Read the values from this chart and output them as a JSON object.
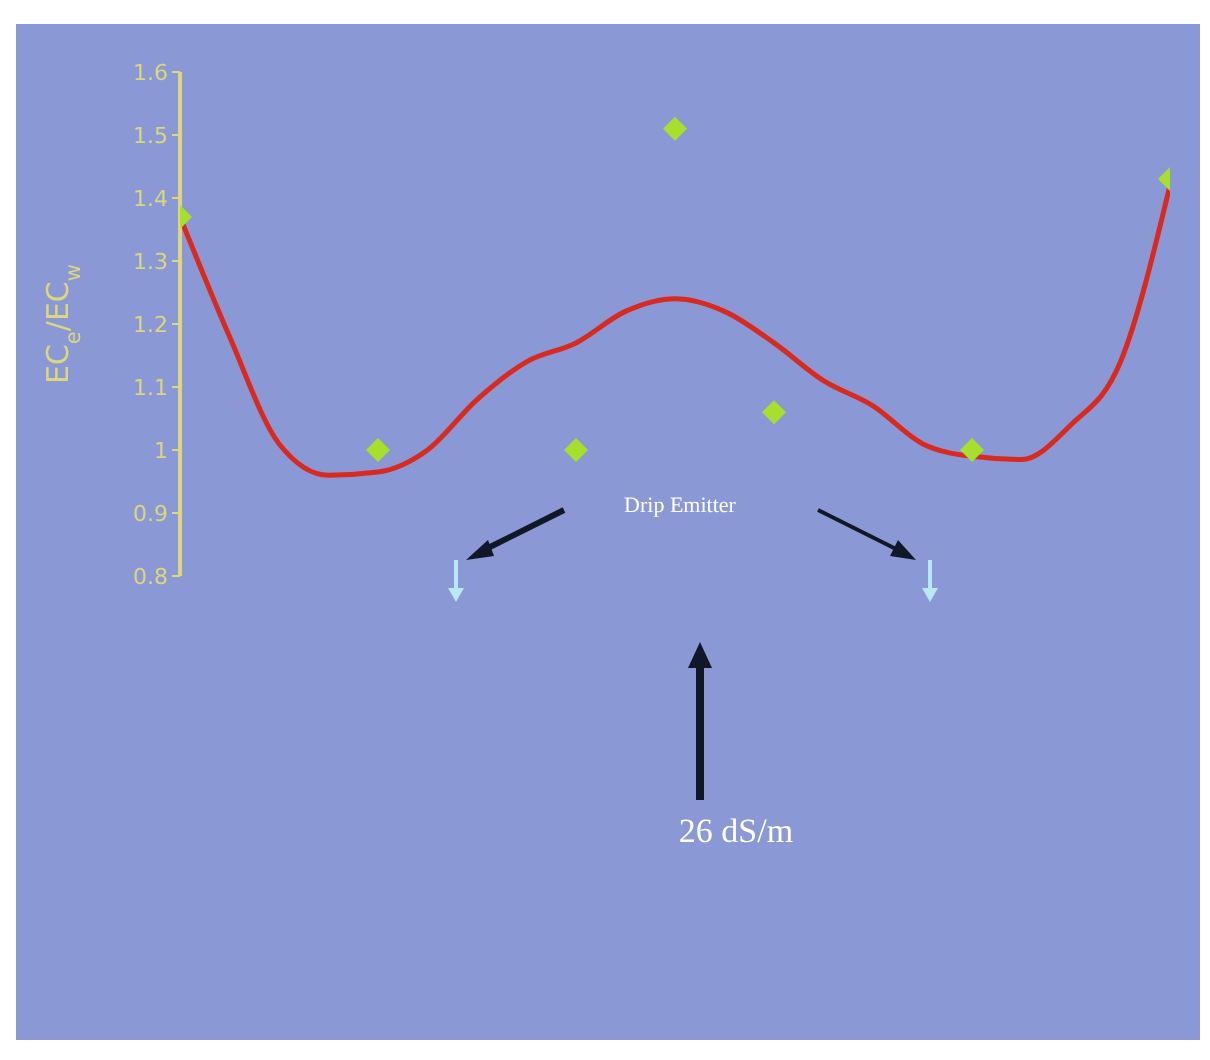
{
  "chart_data": {
    "type": "scatter",
    "ylabel": "EC$_{e}$/EC$_{w}$",
    "annotations": [
      "Drip Emitter",
      "26 dS/m"
    ],
    "categories": [
      null,
      null,
      null,
      null,
      null,
      null,
      null,
      null,
      null,
      null,
      null,
      null,
      null,
      null,
      null,
      null,
      null,
      null,
      null,
      null,
      null
    ],
    "series": [
      {
        "type": "line",
        "color": "#d82a1e",
        "marker": "none",
        "values": [
          1.37,
          1.18,
          1.01,
          0.96,
          0.965,
          1.0,
          1.08,
          1.14,
          1.17,
          1.22,
          1.24,
          1.22,
          1.17,
          1.11,
          1.07,
          1.01,
          0.99,
          0.985,
          1.04,
          1.14,
          1.42
        ]
      },
      {
        "color": "#a6e02c",
        "marker": "diamond",
        "values": [
          1.37,
          null,
          null,
          null,
          1.0,
          null,
          null,
          null,
          1.0,
          null,
          1.51,
          null,
          1.06,
          null,
          null,
          null,
          1.0,
          null,
          null,
          null,
          1.43
        ]
      }
    ],
    "ylim": [
      0.8,
      1.6
    ],
    "yticks": [
      0.8,
      0.9,
      1,
      1.1,
      1.2,
      1.3,
      1.4,
      1.5,
      1.6
    ],
    "grid": false,
    "legend": false,
    "tick_labels": "y"
  }
}
